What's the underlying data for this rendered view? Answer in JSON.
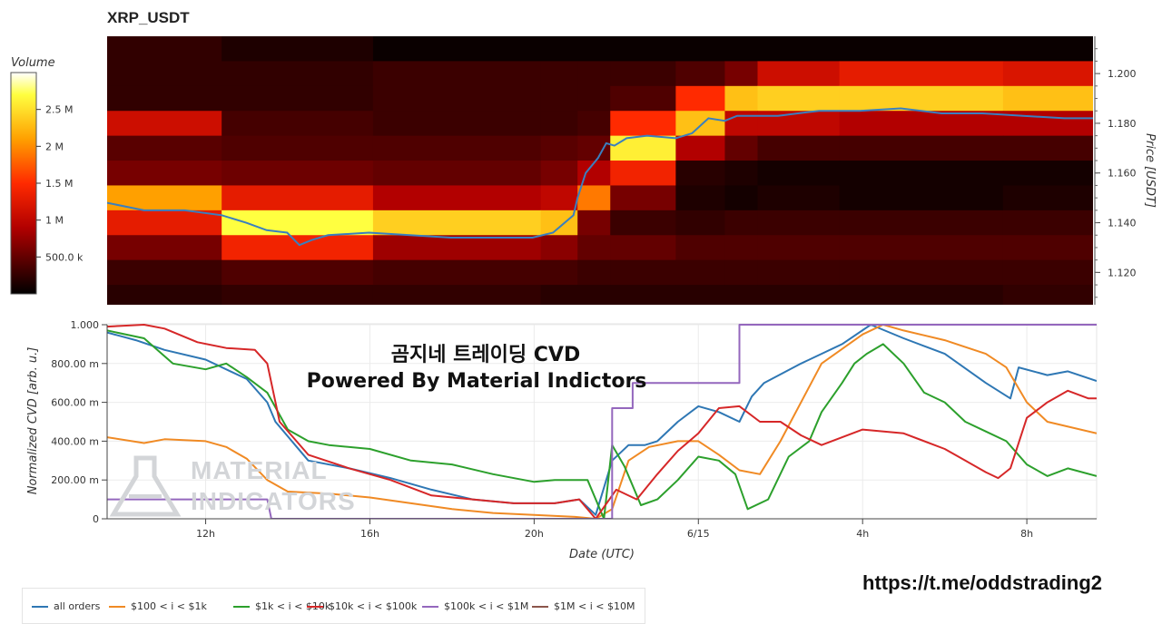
{
  "title": "XRP_USDT",
  "overlay": {
    "line1": "곰지네 트레이딩 CVD",
    "line2": "Powered By Material Indictors"
  },
  "watermark": {
    "line1": "MATERIAL",
    "line2": "INDICATORS"
  },
  "link": "https://t.me/oddstrading2",
  "colorbar": {
    "title": "Volume",
    "ticks": [
      {
        "label": "2.5 M",
        "value": 2.5
      },
      {
        "label": "2 M",
        "value": 2.0
      },
      {
        "label": "1.5 M",
        "value": 1.5
      },
      {
        "label": "1 M",
        "value": 1.0
      },
      {
        "label": "500.0 k",
        "value": 0.5
      }
    ],
    "range": [
      0,
      3.0
    ]
  },
  "heatmap": {
    "ylabel": "Price [USDT]",
    "price_ticks": [
      "1.200",
      "1.180",
      "1.160",
      "1.140",
      "1.120"
    ],
    "price_tick_values": [
      1.2,
      1.18,
      1.16,
      1.14,
      1.12
    ],
    "price_range": [
      1.107,
      1.215
    ],
    "bin_edges": [
      1.215,
      1.205,
      1.195,
      1.185,
      1.175,
      1.165,
      1.155,
      1.145,
      1.135,
      1.125,
      1.115,
      1.107
    ],
    "time_range_hours": [
      9.6,
      33.7
    ],
    "price_line_color": "#3a7fbf"
  },
  "chart_data": [
    {
      "type": "heatmap",
      "title": "XRP_USDT",
      "xlabel": "Date (UTC)",
      "ylabel": "Price [USDT]",
      "colorbar_label": "Volume",
      "segments_hours": [
        9.6,
        12.4,
        16.1,
        20.2,
        21.1,
        21.9,
        23.5,
        24.7,
        25.5,
        27.5,
        31.5,
        33.7
      ],
      "price_bins_top_to_bottom": [
        "1.215-1.205",
        "1.205-1.195",
        "1.195-1.185",
        "1.185-1.175",
        "1.175-1.165",
        "1.165-1.155",
        "1.155-1.145",
        "1.145-1.135",
        "1.135-1.125",
        "1.125-1.115",
        "1.115-1.107"
      ],
      "volume_millions": [
        [
          0.25,
          0.15,
          0.05,
          0.05,
          0.05,
          0.05,
          0.05,
          0.05,
          0.05,
          0.05,
          0.05
        ],
        [
          0.25,
          0.25,
          0.3,
          0.3,
          0.3,
          0.3,
          0.4,
          0.6,
          1.1,
          1.3,
          1.2
        ],
        [
          0.25,
          0.25,
          0.3,
          0.3,
          0.3,
          0.4,
          1.5,
          2.3,
          2.4,
          2.4,
          2.3
        ],
        [
          1.1,
          0.35,
          0.3,
          0.3,
          0.35,
          1.5,
          2.3,
          1.0,
          1.0,
          0.9,
          0.9
        ],
        [
          0.45,
          0.4,
          0.4,
          0.45,
          0.5,
          2.6,
          0.9,
          0.5,
          0.35,
          0.35,
          0.35
        ],
        [
          0.6,
          0.55,
          0.5,
          0.6,
          0.9,
          1.4,
          0.2,
          0.15,
          0.1,
          0.1,
          0.1
        ],
        [
          2.1,
          1.3,
          0.9,
          1.0,
          1.9,
          0.6,
          0.15,
          0.1,
          0.15,
          0.1,
          0.15
        ],
        [
          1.3,
          2.7,
          2.4,
          2.3,
          0.6,
          0.3,
          0.25,
          0.3,
          0.3,
          0.3,
          0.3
        ],
        [
          0.6,
          1.4,
          0.8,
          0.7,
          0.5,
          0.5,
          0.4,
          0.4,
          0.4,
          0.4,
          0.4
        ],
        [
          0.3,
          0.4,
          0.35,
          0.35,
          0.3,
          0.3,
          0.3,
          0.3,
          0.3,
          0.3,
          0.3
        ],
        [
          0.2,
          0.25,
          0.25,
          0.2,
          0.2,
          0.2,
          0.2,
          0.2,
          0.2,
          0.2,
          0.25
        ]
      ],
      "price_line": {
        "x_hours": [
          9.6,
          10.5,
          11.5,
          12.4,
          13.0,
          13.5,
          14.0,
          14.3,
          14.6,
          15.0,
          16.0,
          17.0,
          18.0,
          19.0,
          20.0,
          20.5,
          21.0,
          21.1,
          21.3,
          21.6,
          21.8,
          22.0,
          22.3,
          22.8,
          23.5,
          23.9,
          24.3,
          24.7,
          25.0,
          26.0,
          27.0,
          28.0,
          29.0,
          30.0,
          31.0,
          32.0,
          33.0,
          33.7
        ],
        "y_price": [
          1.148,
          1.145,
          1.145,
          1.143,
          1.14,
          1.137,
          1.136,
          1.131,
          1.133,
          1.135,
          1.136,
          1.135,
          1.134,
          1.134,
          1.134,
          1.136,
          1.143,
          1.15,
          1.16,
          1.166,
          1.172,
          1.171,
          1.174,
          1.175,
          1.174,
          1.176,
          1.182,
          1.181,
          1.183,
          1.183,
          1.185,
          1.185,
          1.186,
          1.184,
          1.184,
          1.183,
          1.182,
          1.182
        ]
      }
    },
    {
      "type": "line",
      "xlabel": "Date (UTC)",
      "ylabel": "Normalized CVD [arb. u.]",
      "x_ticks": [
        {
          "label": "12h",
          "hours": 12
        },
        {
          "label": "16h",
          "hours": 16
        },
        {
          "label": "20h",
          "hours": 20
        },
        {
          "label": "6/15",
          "hours": 24
        },
        {
          "label": "4h",
          "hours": 28
        },
        {
          "label": "8h",
          "hours": 32
        }
      ],
      "y_ticks": [
        {
          "label": "1.000",
          "value": 1.0
        },
        {
          "label": "800.00 m",
          "value": 0.8
        },
        {
          "label": "600.00 m",
          "value": 0.6
        },
        {
          "label": "400.00 m",
          "value": 0.4
        },
        {
          "label": "200.00 m",
          "value": 0.2
        },
        {
          "label": "0",
          "value": 0.0
        }
      ],
      "xlim_hours": [
        9.6,
        33.7
      ],
      "ylim": [
        0,
        1
      ],
      "legend_position": "bottom",
      "series": [
        {
          "name": "all orders",
          "color": "#2e77b4",
          "x": [
            9.6,
            10.3,
            11.0,
            12.0,
            13.0,
            13.5,
            13.7,
            14.5,
            15.5,
            16.5,
            17.5,
            18.5,
            19.5,
            20.5,
            21.1,
            21.5,
            21.9,
            22.3,
            22.7,
            23.0,
            23.5,
            24.0,
            24.5,
            25.0,
            25.3,
            25.6,
            26.5,
            27.5,
            28.2,
            29.0,
            30.0,
            31.0,
            31.6,
            31.8,
            32.5,
            33.0,
            33.7
          ],
          "values": [
            0.96,
            0.92,
            0.87,
            0.82,
            0.72,
            0.6,
            0.5,
            0.3,
            0.26,
            0.21,
            0.15,
            0.1,
            0.08,
            0.08,
            0.1,
            0.02,
            0.3,
            0.38,
            0.38,
            0.4,
            0.5,
            0.58,
            0.55,
            0.5,
            0.63,
            0.7,
            0.8,
            0.9,
            1.0,
            0.93,
            0.85,
            0.7,
            0.62,
            0.78,
            0.74,
            0.76,
            0.71
          ]
        },
        {
          "name": "$100 < i < $1k",
          "color": "#f08a24",
          "x": [
            9.6,
            10.5,
            11.0,
            12.0,
            12.5,
            13.0,
            13.5,
            14.0,
            15.0,
            16.0,
            17.0,
            18.0,
            19.0,
            20.0,
            21.0,
            21.5,
            21.9,
            22.3,
            22.8,
            23.5,
            24.0,
            24.5,
            25.0,
            25.5,
            26.0,
            27.0,
            28.0,
            28.5,
            29.0,
            30.0,
            31.0,
            31.5,
            32.0,
            32.5,
            33.7
          ],
          "values": [
            0.42,
            0.39,
            0.41,
            0.4,
            0.37,
            0.31,
            0.2,
            0.14,
            0.13,
            0.11,
            0.08,
            0.05,
            0.03,
            0.02,
            0.01,
            0.0,
            0.05,
            0.3,
            0.37,
            0.4,
            0.4,
            0.33,
            0.25,
            0.23,
            0.4,
            0.8,
            0.95,
            1.0,
            0.97,
            0.92,
            0.85,
            0.78,
            0.6,
            0.5,
            0.44
          ]
        },
        {
          "name": "$1k < i < $10k",
          "color": "#2ca02c",
          "x": [
            9.6,
            10.5,
            11.2,
            12.0,
            12.5,
            13.0,
            13.5,
            14.0,
            14.5,
            15.0,
            16.0,
            17.0,
            18.0,
            19.0,
            20.0,
            20.5,
            21.0,
            21.3,
            21.7,
            21.9,
            22.2,
            22.6,
            23.0,
            23.5,
            24.0,
            24.5,
            24.9,
            25.2,
            25.7,
            26.2,
            26.7,
            27.0,
            27.5,
            27.8,
            28.1,
            28.5,
            29.0,
            29.5,
            30.0,
            30.5,
            31.0,
            31.5,
            32.0,
            32.5,
            33.0,
            33.7
          ],
          "values": [
            0.97,
            0.93,
            0.8,
            0.77,
            0.8,
            0.73,
            0.65,
            0.46,
            0.4,
            0.38,
            0.36,
            0.3,
            0.28,
            0.23,
            0.19,
            0.2,
            0.2,
            0.2,
            0.0,
            0.38,
            0.27,
            0.07,
            0.1,
            0.2,
            0.32,
            0.3,
            0.23,
            0.05,
            0.1,
            0.32,
            0.4,
            0.55,
            0.7,
            0.8,
            0.85,
            0.9,
            0.8,
            0.65,
            0.6,
            0.5,
            0.45,
            0.4,
            0.28,
            0.22,
            0.26,
            0.22
          ]
        },
        {
          "name": "$10k < i < $100k",
          "color": "#d62728",
          "x": [
            9.6,
            10.5,
            11.0,
            11.8,
            12.5,
            13.2,
            13.5,
            13.8,
            14.5,
            15.5,
            16.5,
            17.5,
            18.5,
            19.5,
            20.5,
            21.1,
            21.5,
            22.0,
            22.5,
            23.0,
            23.5,
            24.0,
            24.5,
            25.0,
            25.5,
            26.0,
            26.5,
            27.0,
            28.0,
            29.0,
            30.0,
            30.5,
            31.0,
            31.3,
            31.6,
            32.0,
            32.5,
            33.0,
            33.5,
            33.7
          ],
          "values": [
            0.99,
            1.0,
            0.98,
            0.91,
            0.88,
            0.87,
            0.8,
            0.5,
            0.33,
            0.26,
            0.2,
            0.12,
            0.1,
            0.08,
            0.08,
            0.1,
            0.0,
            0.15,
            0.1,
            0.23,
            0.35,
            0.44,
            0.57,
            0.58,
            0.5,
            0.5,
            0.43,
            0.38,
            0.46,
            0.44,
            0.36,
            0.3,
            0.24,
            0.21,
            0.26,
            0.52,
            0.6,
            0.66,
            0.62,
            0.62
          ]
        },
        {
          "name": "$100k < i < $1M",
          "color": "#9467bd",
          "x": [
            9.6,
            13.5,
            13.6,
            21.9,
            21.9,
            22.4,
            22.4,
            25.0,
            25.0,
            33.7
          ],
          "values": [
            0.1,
            0.1,
            0.0,
            0.0,
            0.57,
            0.57,
            0.7,
            0.7,
            1.0,
            1.0
          ]
        },
        {
          "name": "$1M < i < $10M",
          "color": "#8c564b",
          "x": [],
          "values": []
        }
      ]
    }
  ]
}
